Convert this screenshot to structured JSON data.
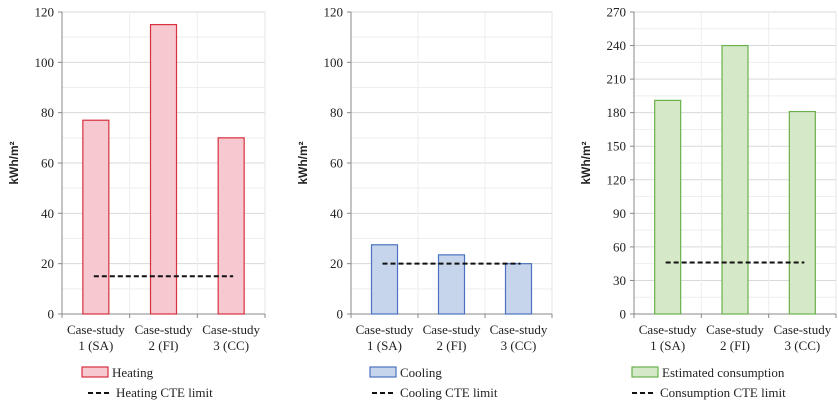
{
  "chart_data": [
    {
      "type": "bar",
      "categories": [
        "Case-study 1 (SA)",
        "Case-study 2 (FI)",
        "Case-study 3 (CC)"
      ],
      "category_lines": [
        [
          "Case-study",
          "1 (SA)"
        ],
        [
          "Case-study",
          "2 (FI)"
        ],
        [
          "Case-study",
          "3 (CC)"
        ]
      ],
      "series": [
        {
          "name": "Heating",
          "values": [
            77,
            115,
            70
          ],
          "fill": "#f6c9d0",
          "stroke": "#d9303e"
        }
      ],
      "limit": {
        "name": "Heating CTE limit",
        "value": 15
      },
      "ylabel": "kWh/m²",
      "ylim": [
        0,
        120
      ],
      "yticks": [
        0,
        20,
        40,
        60,
        80,
        100,
        120
      ],
      "grid": true
    },
    {
      "type": "bar",
      "categories": [
        "Case-study 1 (SA)",
        "Case-study 2 (FI)",
        "Case-study 3 (CC)"
      ],
      "category_lines": [
        [
          "Case-study",
          "1 (SA)"
        ],
        [
          "Case-study",
          "2 (FI)"
        ],
        [
          "Case-study",
          "3 (CC)"
        ]
      ],
      "series": [
        {
          "name": "Cooling",
          "values": [
            27.5,
            23.5,
            20
          ],
          "fill": "#c6d4ec",
          "stroke": "#4a72c0"
        }
      ],
      "limit": {
        "name": "Cooling CTE limit",
        "value": 20
      },
      "ylabel": "kWh/m²",
      "ylim": [
        0,
        120
      ],
      "yticks": [
        0,
        20,
        40,
        60,
        80,
        100,
        120
      ],
      "grid": true
    },
    {
      "type": "bar",
      "categories": [
        "Case-study 1 (SA)",
        "Case-study 2 (FI)",
        "Case-study 3 (CC)"
      ],
      "category_lines": [
        [
          "Case-study",
          "1 (SA)"
        ],
        [
          "Case-study",
          "2 (FI)"
        ],
        [
          "Case-study",
          "3 (CC)"
        ]
      ],
      "series": [
        {
          "name": "Estimated consumption",
          "values": [
            191,
            240,
            181
          ],
          "fill": "#d5e8c8",
          "stroke": "#6ab04c"
        }
      ],
      "limit": {
        "name": "Consumption CTE limit",
        "value": 46
      },
      "ylabel": "kWh/m²",
      "ylim": [
        0,
        270
      ],
      "yticks": [
        0,
        30,
        60,
        90,
        120,
        150,
        180,
        210,
        240,
        270
      ],
      "grid": true
    }
  ]
}
